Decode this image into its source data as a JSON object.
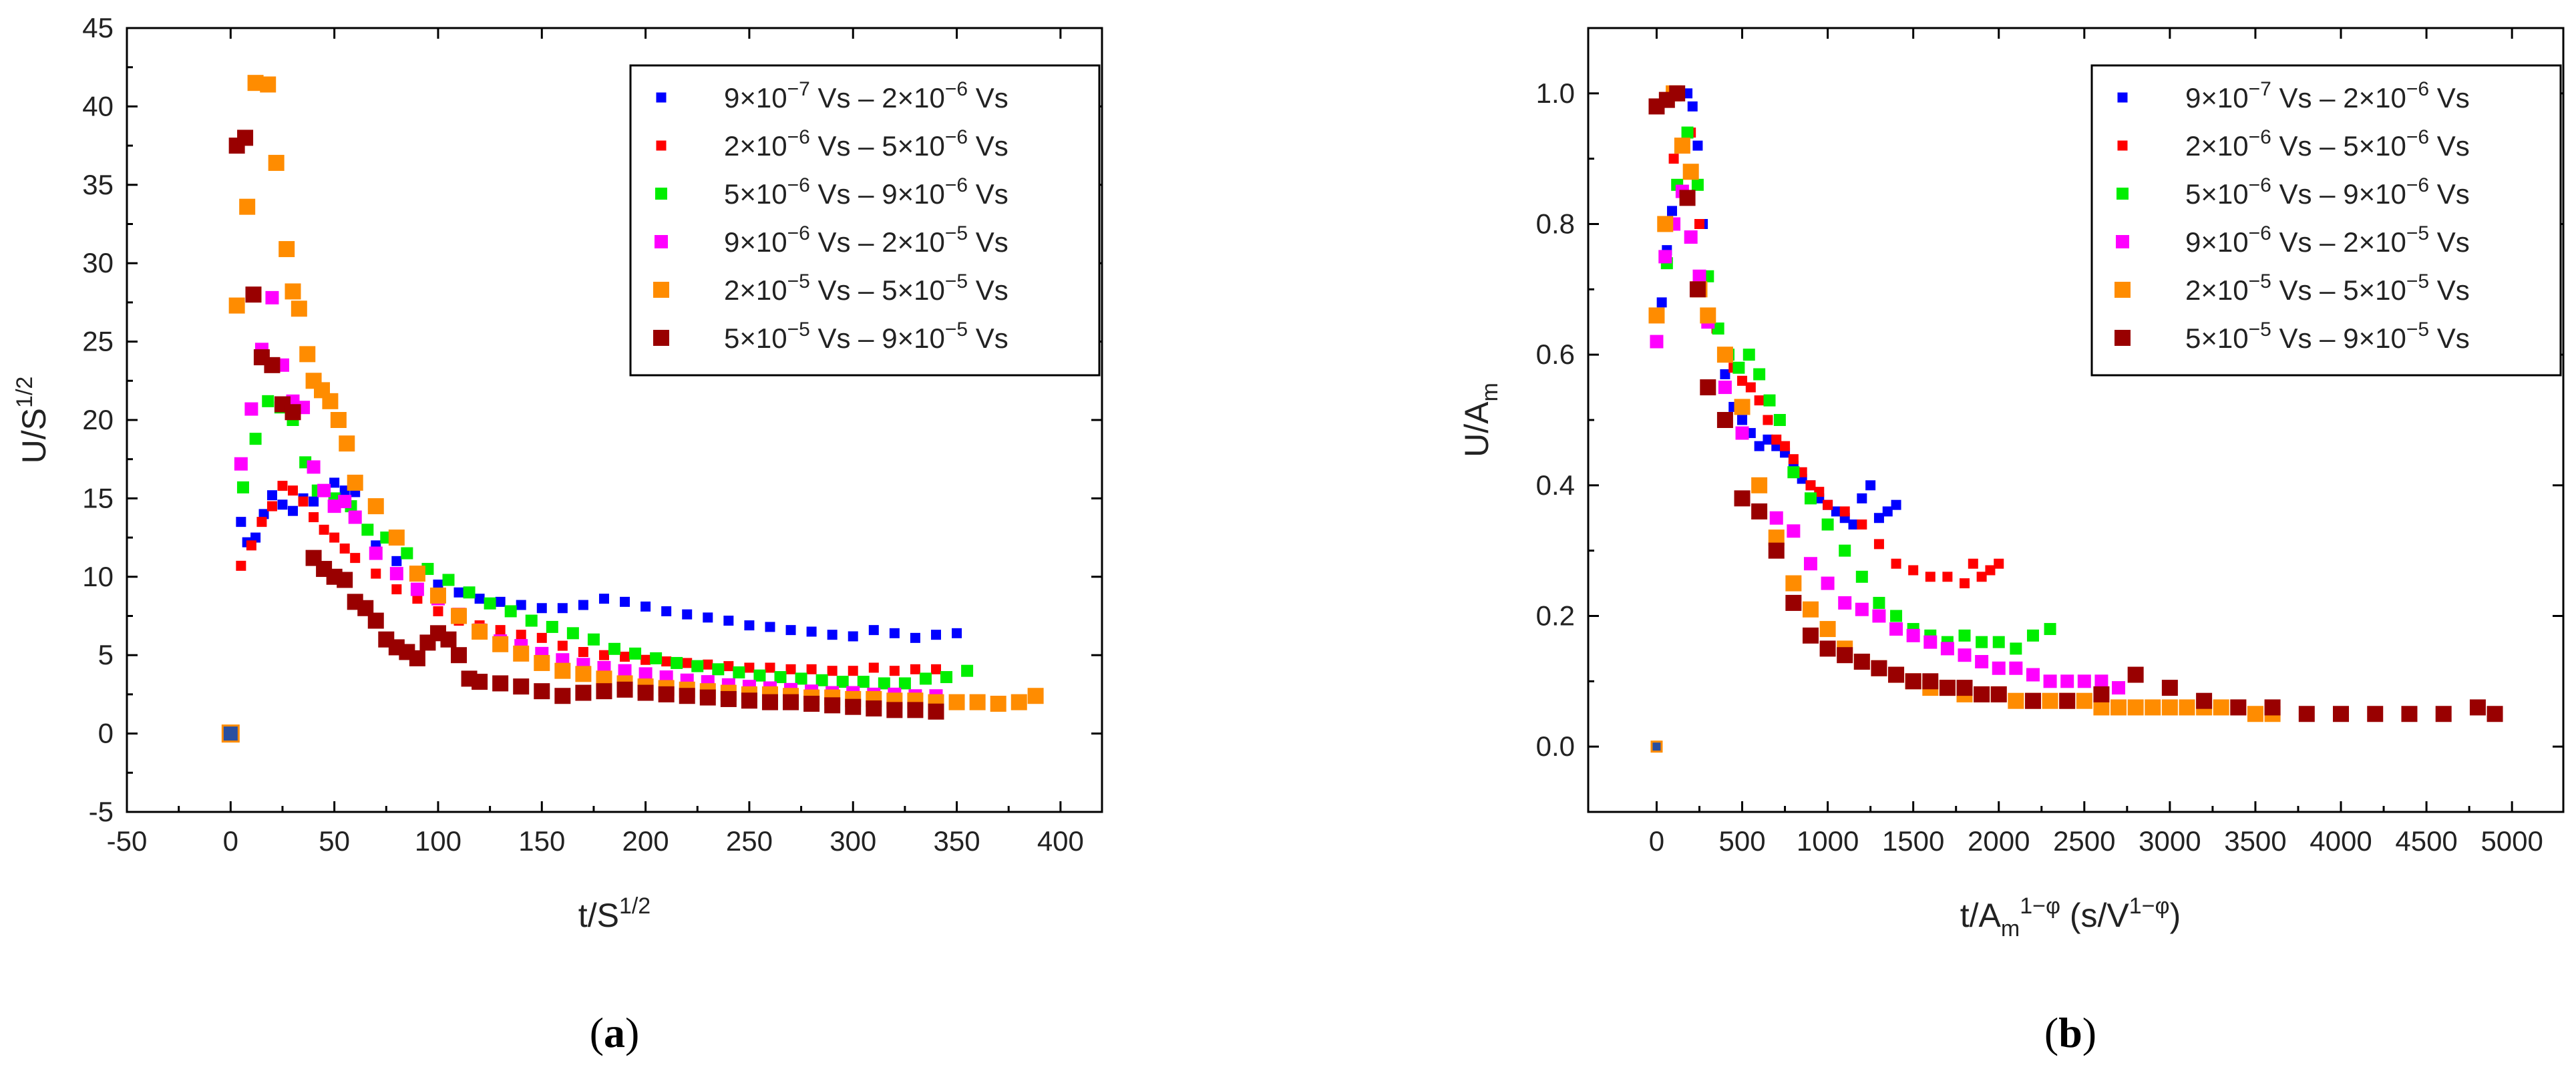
{
  "colors": {
    "s1": "#0000ff",
    "s2": "#ff0000",
    "s3": "#00ee00",
    "s4": "#ff00ff",
    "s5": "#ff8c00",
    "s6": "#990000",
    "origin": "#2a4fa0"
  },
  "legend_labels": {
    "s1": {
      "a": "9×10",
      "a_exp": "−7",
      "b": " Vs – 2×10",
      "b_exp": "−6",
      "c": " Vs"
    },
    "s2": {
      "a": "2×10",
      "a_exp": "−6",
      "b": " Vs – 5×10",
      "b_exp": "−6",
      "c": " Vs"
    },
    "s3": {
      "a": "5×10",
      "a_exp": "−6",
      "b": " Vs – 9×10",
      "b_exp": "−6",
      "c": " Vs"
    },
    "s4": {
      "a": "9×10",
      "a_exp": "−6",
      "b": " Vs – 2×10",
      "b_exp": "−5",
      "c": " Vs"
    },
    "s5": {
      "a": "2×10",
      "a_exp": "−5",
      "b": " Vs – 5×10",
      "b_exp": "−5",
      "c": " Vs"
    },
    "s6": {
      "a": "5×10",
      "a_exp": "−5",
      "b": " Vs – 9×10",
      "b_exp": "−5",
      "c": " Vs"
    }
  },
  "panel_labels": {
    "a": "a",
    "b": "b"
  },
  "chart_data": [
    {
      "type": "scatter",
      "panel": "a",
      "xlabel": {
        "base": "t/S",
        "sup": "1/2"
      },
      "ylabel": {
        "base": "U/S",
        "sup": "1/2"
      },
      "xlim": [
        -50,
        420
      ],
      "ylim": [
        -5,
        45
      ],
      "xticks": [
        -50,
        0,
        50,
        100,
        150,
        200,
        250,
        300,
        350,
        400
      ],
      "yticks": [
        -5,
        0,
        5,
        10,
        15,
        20,
        25,
        30,
        35,
        40,
        45
      ],
      "legend_position": "top-right",
      "series": [
        {
          "key": "s1",
          "name": "9×10−7 Vs – 2×10−6 Vs",
          "x": [
            0,
            5,
            8,
            12,
            16,
            20,
            25,
            30,
            35,
            40,
            45,
            50,
            55,
            60,
            70,
            80,
            90,
            100,
            110,
            120,
            130,
            140,
            150,
            160,
            170,
            180,
            190,
            200,
            210,
            220,
            230,
            240,
            250,
            260,
            270,
            280,
            290,
            300,
            310,
            320,
            330,
            340,
            350
          ],
          "y": [
            0,
            13.5,
            12.2,
            12.5,
            14,
            15.2,
            14.6,
            14.2,
            15,
            14.8,
            15.5,
            16,
            15.5,
            15.4,
            12,
            11,
            10.2,
            9.5,
            9,
            8.6,
            8.4,
            8.2,
            8.0,
            8.0,
            8.2,
            8.6,
            8.4,
            8.1,
            7.8,
            7.6,
            7.4,
            7.2,
            6.9,
            6.8,
            6.6,
            6.5,
            6.3,
            6.2,
            6.6,
            6.4,
            6.1,
            6.3,
            6.4
          ]
        },
        {
          "key": "s2",
          "name": "2×10−6 Vs – 5×10−6 Vs",
          "x": [
            5,
            10,
            15,
            20,
            25,
            30,
            35,
            40,
            45,
            50,
            55,
            60,
            70,
            80,
            90,
            100,
            110,
            120,
            130,
            140,
            150,
            160,
            170,
            180,
            190,
            200,
            210,
            220,
            230,
            240,
            250,
            260,
            270,
            280,
            290,
            300,
            310,
            320,
            330,
            340
          ],
          "y": [
            10.7,
            12,
            13.5,
            14.5,
            15.8,
            15.5,
            14.8,
            13.8,
            13,
            12.5,
            11.8,
            11.2,
            10.2,
            9.2,
            8.6,
            7.8,
            7.2,
            6.9,
            6.6,
            6.3,
            6.1,
            5.6,
            5.2,
            5.0,
            4.9,
            4.7,
            4.6,
            4.5,
            4.4,
            4.3,
            4.2,
            4.2,
            4.1,
            4.1,
            4.0,
            4.0,
            4.2,
            4.0,
            4.1,
            4.1
          ]
        },
        {
          "key": "s3",
          "name": "5×10−6 Vs – 9×10−6 Vs",
          "x": [
            6,
            12,
            18,
            24,
            30,
            36,
            42,
            50,
            58,
            66,
            75,
            85,
            95,
            105,
            115,
            125,
            135,
            145,
            155,
            165,
            175,
            185,
            195,
            205,
            215,
            225,
            235,
            245,
            255,
            265,
            275,
            285,
            295,
            305,
            315,
            325,
            335,
            345,
            355
          ],
          "y": [
            15.7,
            18.8,
            21.2,
            20.8,
            20,
            17.3,
            15.5,
            15.0,
            14.5,
            13,
            12.5,
            11.5,
            10.5,
            9.8,
            9.0,
            8.3,
            7.8,
            7.2,
            6.8,
            6.4,
            6.0,
            5.4,
            5.1,
            4.8,
            4.5,
            4.3,
            4.1,
            3.9,
            3.7,
            3.6,
            3.5,
            3.4,
            3.3,
            3.3,
            3.2,
            3.2,
            3.5,
            3.6,
            4.0
          ]
        },
        {
          "key": "s4",
          "name": "9×10−6 Vs – 2×10−5 Vs",
          "x": [
            5,
            10,
            15,
            20,
            25,
            30,
            35,
            40,
            45,
            50,
            55,
            60,
            70,
            80,
            90,
            100,
            110,
            120,
            130,
            140,
            150,
            160,
            170,
            180,
            190,
            200,
            210,
            220,
            230,
            240,
            250,
            260,
            270,
            280,
            290,
            300,
            310,
            320,
            330,
            340
          ],
          "y": [
            17.2,
            20.7,
            24.5,
            27.8,
            23.5,
            21.2,
            20.8,
            17.0,
            15.5,
            14.5,
            14.8,
            13.8,
            11.5,
            10.2,
            9.2,
            8.6,
            7.6,
            6.6,
            5.9,
            5.6,
            5.1,
            4.7,
            4.4,
            4.2,
            4.0,
            3.8,
            3.6,
            3.4,
            3.3,
            3.1,
            3.0,
            2.9,
            2.8,
            2.7,
            2.6,
            2.6,
            2.5,
            2.5,
            2.4,
            2.4
          ]
        },
        {
          "key": "s5",
          "name": "2×10−5 Vs – 5×10−5 Vs",
          "x": [
            0,
            3,
            8,
            12,
            18,
            22,
            27,
            30,
            33,
            37,
            40,
            44,
            48,
            52,
            56,
            60,
            70,
            80,
            90,
            100,
            110,
            120,
            130,
            140,
            150,
            160,
            170,
            180,
            190,
            200,
            210,
            220,
            230,
            240,
            250,
            260,
            270,
            280,
            290,
            300,
            310,
            320,
            330,
            340,
            350,
            360,
            370,
            380,
            388
          ],
          "y": [
            0,
            27.3,
            33.6,
            41.5,
            41.4,
            36.4,
            30.9,
            28.2,
            27.1,
            24.2,
            22.5,
            21.9,
            21.2,
            20.0,
            18.5,
            16.0,
            14.5,
            12.5,
            10.2,
            8.8,
            7.5,
            6.5,
            5.7,
            5.1,
            4.5,
            4.0,
            3.8,
            3.5,
            3.2,
            3.0,
            2.9,
            2.8,
            2.7,
            2.6,
            2.5,
            2.5,
            2.4,
            2.3,
            2.3,
            2.2,
            2.2,
            2.1,
            2.1,
            2.0,
            2.0,
            2.0,
            1.9,
            2.0,
            2.4
          ]
        },
        {
          "key": "s6",
          "name": "5×10−5 Vs – 9×10−5 Vs",
          "x": [
            3,
            7,
            11,
            15,
            20,
            25,
            30,
            40,
            45,
            50,
            55,
            60,
            65,
            70,
            75,
            80,
            85,
            90,
            95,
            100,
            105,
            110,
            115,
            120,
            130,
            140,
            150,
            160,
            170,
            180,
            190,
            200,
            210,
            220,
            230,
            240,
            250,
            260,
            270,
            280,
            290,
            300,
            310,
            320,
            330,
            340
          ],
          "y": [
            37.5,
            38.0,
            28.0,
            24.0,
            23.5,
            21.0,
            20.5,
            11.2,
            10.5,
            10.0,
            9.8,
            8.4,
            8.0,
            7.2,
            6.0,
            5.5,
            5.2,
            4.8,
            5.8,
            6.4,
            6.0,
            5.0,
            3.5,
            3.3,
            3.2,
            3.0,
            2.7,
            2.4,
            2.6,
            2.7,
            2.8,
            2.6,
            2.5,
            2.4,
            2.3,
            2.2,
            2.1,
            2.0,
            2.0,
            1.9,
            1.8,
            1.7,
            1.6,
            1.5,
            1.5,
            1.4
          ]
        }
      ]
    },
    {
      "type": "scatter",
      "panel": "b",
      "xlabel": {
        "base": "t/A",
        "sub": "m",
        "sup": "1−φ",
        "rest_open": " (s/V",
        "rest_sup": "1−φ",
        "rest_close": ")"
      },
      "ylabel": {
        "base": "U/A",
        "sub": "m"
      },
      "xlim": [
        -400,
        5300
      ],
      "ylim": [
        -0.1,
        1.1
      ],
      "xticks": [
        0,
        500,
        1000,
        1500,
        2000,
        2500,
        3000,
        3500,
        4000,
        4500,
        5000
      ],
      "yticks": [
        0.0,
        0.2,
        0.4,
        0.6,
        0.8,
        1.0
      ],
      "legend_position": "top-right",
      "series": [
        {
          "key": "s1",
          "name": "9×10−7 Vs – 2×10−6 Vs",
          "x": [
            0,
            30,
            60,
            90,
            120,
            150,
            180,
            210,
            240,
            270,
            300,
            350,
            400,
            450,
            500,
            550,
            600,
            650,
            700,
            750,
            800,
            850,
            900,
            950,
            1000,
            1050,
            1100,
            1150,
            1200,
            1250,
            1300,
            1350,
            1400
          ],
          "y": [
            0,
            0.68,
            0.76,
            0.82,
            0.86,
            0.92,
            1.0,
            0.98,
            0.92,
            0.8,
            0.72,
            0.64,
            0.57,
            0.52,
            0.5,
            0.48,
            0.46,
            0.47,
            0.46,
            0.45,
            0.43,
            0.41,
            0.4,
            0.38,
            0.37,
            0.36,
            0.35,
            0.34,
            0.38,
            0.4,
            0.35,
            0.36,
            0.37
          ]
        },
        {
          "key": "s2",
          "name": "2×10−6 Vs – 5×10−6 Vs",
          "x": [
            100,
            200,
            250,
            300,
            350,
            400,
            450,
            500,
            550,
            600,
            650,
            700,
            750,
            800,
            850,
            900,
            950,
            1000,
            1100,
            1200,
            1300,
            1400,
            1500,
            1600,
            1700,
            1800,
            1850,
            1900,
            1950,
            2000
          ],
          "y": [
            0.9,
            0.94,
            0.8,
            0.72,
            0.64,
            0.6,
            0.58,
            0.56,
            0.55,
            0.53,
            0.5,
            0.47,
            0.46,
            0.44,
            0.42,
            0.4,
            0.39,
            0.37,
            0.36,
            0.34,
            0.31,
            0.28,
            0.27,
            0.26,
            0.26,
            0.25,
            0.28,
            0.26,
            0.27,
            0.28
          ]
        },
        {
          "key": "s3",
          "name": "5×10−6 Vs – 9×10−6 Vs",
          "x": [
            60,
            120,
            180,
            240,
            300,
            360,
            420,
            480,
            540,
            600,
            660,
            720,
            800,
            900,
            1000,
            1100,
            1200,
            1300,
            1400,
            1500,
            1600,
            1700,
            1800,
            1900,
            2000,
            2100,
            2200,
            2300
          ],
          "y": [
            0.74,
            0.86,
            0.94,
            0.86,
            0.72,
            0.64,
            0.6,
            0.58,
            0.6,
            0.57,
            0.53,
            0.5,
            0.42,
            0.38,
            0.34,
            0.3,
            0.26,
            0.22,
            0.2,
            0.18,
            0.17,
            0.16,
            0.17,
            0.16,
            0.16,
            0.15,
            0.17,
            0.18
          ]
        },
        {
          "key": "s4",
          "name": "9×10−6 Vs – 2×10−5 Vs",
          "x": [
            0,
            50,
            100,
            150,
            200,
            250,
            300,
            400,
            500,
            600,
            700,
            800,
            900,
            1000,
            1100,
            1200,
            1300,
            1400,
            1500,
            1600,
            1700,
            1800,
            1900,
            2000,
            2100,
            2200,
            2300,
            2400,
            2500,
            2600,
            2700
          ],
          "y": [
            0.62,
            0.75,
            0.8,
            0.85,
            0.78,
            0.72,
            0.65,
            0.55,
            0.48,
            0.4,
            0.35,
            0.33,
            0.28,
            0.25,
            0.22,
            0.21,
            0.2,
            0.18,
            0.17,
            0.16,
            0.15,
            0.14,
            0.13,
            0.12,
            0.12,
            0.11,
            0.1,
            0.1,
            0.1,
            0.1,
            0.09
          ]
        },
        {
          "key": "s5",
          "name": "2×10−5 Vs – 5×10−5 Vs",
          "x": [
            0,
            50,
            100,
            150,
            200,
            250,
            300,
            400,
            500,
            600,
            700,
            800,
            900,
            1000,
            1100,
            1200,
            1300,
            1400,
            1500,
            1600,
            1700,
            1800,
            1900,
            2000,
            2100,
            2200,
            2300,
            2400,
            2500,
            2600,
            2700,
            2800,
            2900,
            3000,
            3100,
            3200,
            3300,
            3400,
            3500,
            3600
          ],
          "y": [
            0.66,
            0.8,
            1.0,
            0.92,
            0.88,
            0.7,
            0.66,
            0.6,
            0.52,
            0.4,
            0.32,
            0.25,
            0.21,
            0.18,
            0.15,
            0.13,
            0.12,
            0.11,
            0.1,
            0.09,
            0.09,
            0.08,
            0.08,
            0.08,
            0.07,
            0.07,
            0.07,
            0.07,
            0.07,
            0.06,
            0.06,
            0.06,
            0.06,
            0.06,
            0.06,
            0.06,
            0.06,
            0.06,
            0.05,
            0.05
          ]
        },
        {
          "key": "s6",
          "name": "5×10−5 Vs – 9×10−5 Vs",
          "x": [
            0,
            60,
            120,
            180,
            240,
            300,
            400,
            500,
            600,
            700,
            800,
            900,
            1000,
            1100,
            1200,
            1300,
            1400,
            1500,
            1600,
            1700,
            1800,
            1900,
            2000,
            2200,
            2400,
            2600,
            2800,
            3000,
            3200,
            3400,
            3600,
            3800,
            4000,
            4200,
            4400,
            4600,
            4800,
            4900
          ],
          "y": [
            0.98,
            0.99,
            1.0,
            0.84,
            0.7,
            0.55,
            0.5,
            0.38,
            0.36,
            0.3,
            0.22,
            0.17,
            0.15,
            0.14,
            0.13,
            0.12,
            0.11,
            0.1,
            0.1,
            0.09,
            0.09,
            0.08,
            0.08,
            0.07,
            0.07,
            0.08,
            0.11,
            0.09,
            0.07,
            0.06,
            0.06,
            0.05,
            0.05,
            0.05,
            0.05,
            0.05,
            0.06,
            0.05
          ]
        }
      ]
    }
  ]
}
